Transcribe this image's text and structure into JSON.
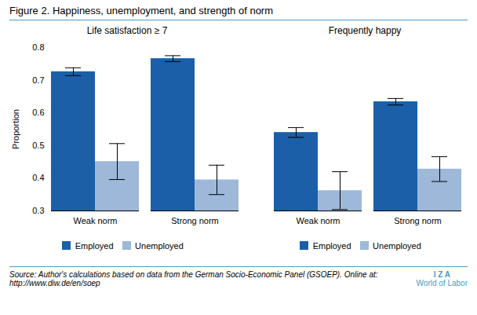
{
  "title": "Figure 2. Happiness, unemployment, and strength of norm",
  "annotations": [
    "Source: Author's calculations based on data from the German Socio-Economic Panel (GSOEP). Online at:\nhttp://www.diw.de/en/soep",
    "I Z A",
    "World of Labor"
  ],
  "chart_data": [
    {
      "type": "bar",
      "title": "Life satisfaction ≥ 7",
      "ylabel": "Proportion",
      "categories": [
        "Weak norm",
        "Strong norm"
      ],
      "series": [
        {
          "name": "Employed",
          "color": "#1a5fa8",
          "values": [
            0.726,
            0.766
          ],
          "errors": [
            0.012,
            0.009
          ]
        },
        {
          "name": "Unemployed",
          "color": "#9db8d9",
          "values": [
            0.451,
            0.395
          ],
          "errors": [
            0.055,
            0.045
          ]
        }
      ],
      "ylim": [
        0.3,
        0.8
      ],
      "yticks": [
        0.3,
        0.4,
        0.5,
        0.6,
        0.7,
        0.8
      ],
      "grid": false,
      "legend": "bottom"
    },
    {
      "type": "bar",
      "title": "Frequently happy",
      "categories": [
        "Weak norm",
        "Strong norm"
      ],
      "series": [
        {
          "name": "Employed",
          "color": "#1a5fa8",
          "values": [
            0.54,
            0.634
          ],
          "errors": [
            0.015,
            0.01
          ]
        },
        {
          "name": "Unemployed",
          "color": "#9db8d9",
          "values": [
            0.362,
            0.428
          ],
          "errors": [
            0.058,
            0.038
          ]
        }
      ],
      "ylim": [
        0.3,
        0.8
      ],
      "yticks": [
        0.3,
        0.4,
        0.5,
        0.6,
        0.7,
        0.8
      ],
      "grid": false,
      "legend": "bottom",
      "tick_labels": "x"
    }
  ]
}
